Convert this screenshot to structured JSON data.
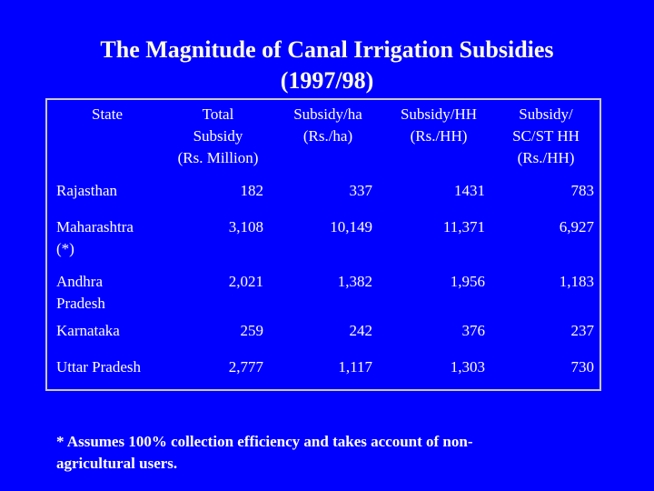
{
  "title": {
    "line1": "The Magnitude of Canal Irrigation Subsidies",
    "line2": "(1997/98)"
  },
  "table": {
    "headers": [
      [
        "State"
      ],
      [
        "Total",
        "Subsidy",
        "(Rs. Million)"
      ],
      [
        "Subsidy/ha",
        "(Rs./ha)"
      ],
      [
        "Subsidy/HH",
        "(Rs./HH)"
      ],
      [
        "Subsidy/",
        "SC/ST HH",
        "(Rs./HH)"
      ]
    ],
    "rows": [
      {
        "state": [
          "Rajasthan"
        ],
        "total": "182",
        "per_ha": "337",
        "per_hh": "1431",
        "scst": "783"
      },
      {
        "state": [
          "Maharashtra",
          "(*)"
        ],
        "total": "3,108",
        "per_ha": "10,149",
        "per_hh": "11,371",
        "scst": "6,927"
      },
      {
        "state": [
          "Andhra",
          "Pradesh"
        ],
        "total": "2,021",
        "per_ha": "1,382",
        "per_hh": "1,956",
        "scst": "1,183"
      },
      {
        "state": [
          "Karnataka"
        ],
        "total": "259",
        "per_ha": "242",
        "per_hh": "376",
        "scst": "237"
      },
      {
        "state": [
          "Uttar Pradesh"
        ],
        "total": "2,777",
        "per_ha": "1,117",
        "per_hh": "1,303",
        "scst": "730"
      }
    ]
  },
  "footnote": {
    "line1": "* Assumes 100% collection efficiency and takes account of non-",
    "line2": "agricultural users."
  }
}
